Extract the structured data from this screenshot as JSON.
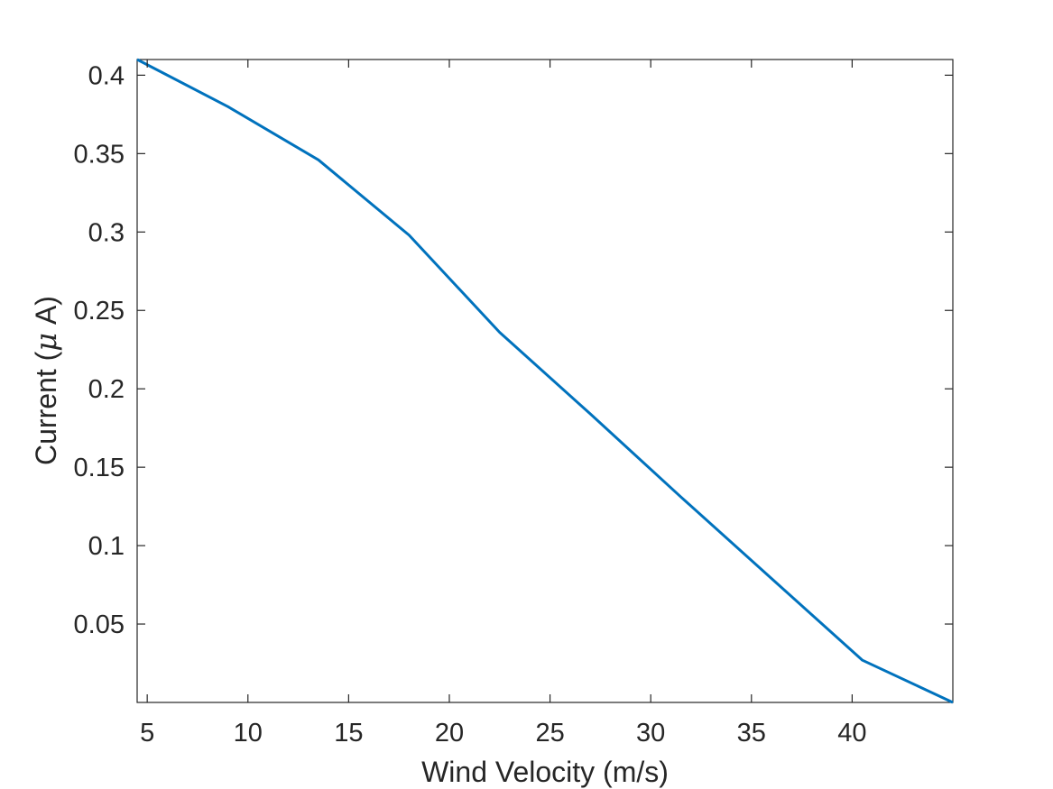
{
  "chart_data": {
    "type": "line",
    "xlabel": "Wind Velocity (m/s)",
    "ylabel_prefix": "Current (",
    "ylabel_mu": "μ",
    "ylabel_suffix": " A)",
    "xlim": [
      4.5,
      45
    ],
    "ylim": [
      0.0,
      0.41
    ],
    "xticks": [
      5,
      10,
      15,
      20,
      25,
      30,
      35,
      40
    ],
    "xtick_labels": [
      "5",
      "10",
      "15",
      "20",
      "25",
      "30",
      "35",
      "40"
    ],
    "yticks": [
      0.05,
      0.1,
      0.15,
      0.2,
      0.25,
      0.3,
      0.35,
      0.4
    ],
    "ytick_labels": [
      "0.05",
      "0.1",
      "0.15",
      "0.2",
      "0.25",
      "0.3",
      "0.35",
      "0.4"
    ],
    "grid": false,
    "box": true,
    "series": [
      {
        "color": "#0072BD",
        "x": [
          4.5,
          9,
          13.5,
          18,
          22.5,
          27,
          31.5,
          36,
          40.5,
          45
        ],
        "y": [
          0.41,
          0.38,
          0.346,
          0.298,
          0.236,
          0.184,
          0.131,
          0.079,
          0.027,
          0.0
        ]
      }
    ]
  }
}
